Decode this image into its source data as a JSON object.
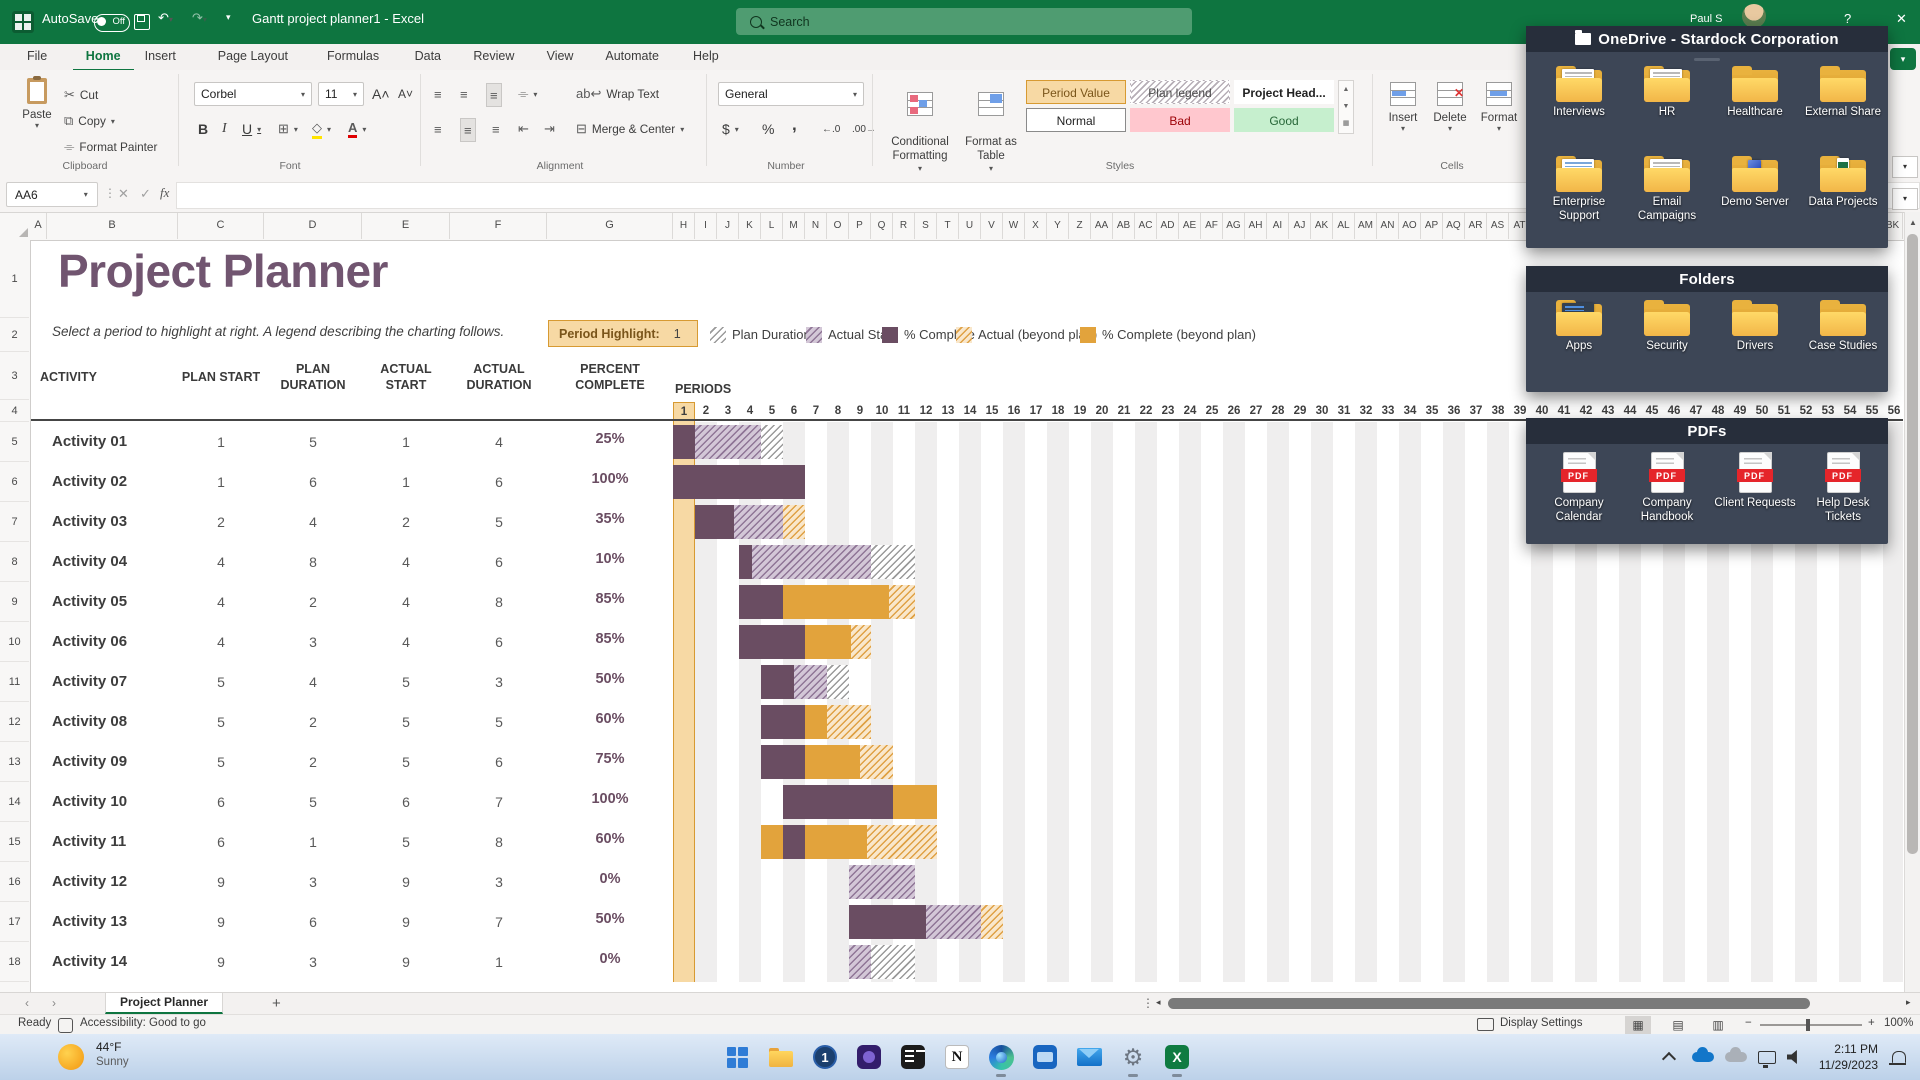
{
  "window": {
    "autosave_label": "AutoSave",
    "autosave_state": "Off",
    "filename": "Gantt project planner1 - Excel",
    "search_placeholder": "Search",
    "user_name": "Paul S",
    "help_label": "?",
    "close_label": "✕"
  },
  "ribbon": {
    "tabs": [
      "File",
      "Home",
      "Insert",
      "Page Layout",
      "Formulas",
      "Data",
      "Review",
      "View",
      "Automate",
      "Help"
    ],
    "active_tab": "Home",
    "clipboard": {
      "label": "Clipboard",
      "paste": "Paste",
      "cut": "Cut",
      "copy": "Copy",
      "format_painter": "Format Painter"
    },
    "font": {
      "label": "Font",
      "name": "Corbel",
      "size": "11",
      "bold": "B",
      "italic": "I",
      "underline": "U"
    },
    "alignment": {
      "label": "Alignment",
      "wrap": "Wrap Text",
      "merge": "Merge & Center"
    },
    "number": {
      "label": "Number",
      "format": "General",
      "symbols": [
        "$",
        "%",
        ","
      ]
    },
    "styles": {
      "label": "Styles",
      "conditional": "Conditional\nFormatting",
      "format_table": "Format as\nTable",
      "gallery": [
        {
          "label": "Period Value",
          "style": "g-period"
        },
        {
          "label": "Plan legend",
          "style": "g-hatch"
        },
        {
          "label": "Project Head...",
          "style": "g-bold"
        },
        {
          "label": "Normal",
          "style": "g-normal"
        },
        {
          "label": "Bad",
          "style": "g-bad"
        },
        {
          "label": "Good",
          "style": "g-good"
        }
      ]
    },
    "cells": {
      "label": "Cells",
      "buttons": [
        "Insert",
        "Delete",
        "Format"
      ]
    }
  },
  "formula_bar": {
    "name_box": "AA6",
    "fx": "fx"
  },
  "sheet": {
    "col_headers_visible": [
      "A",
      "B",
      "C",
      "D",
      "E",
      "F",
      "G",
      "H",
      "I",
      "J",
      "K",
      "L",
      "M",
      "N",
      "O",
      "P",
      "Q",
      "R",
      "S",
      "T",
      "U",
      "V",
      "W",
      "X",
      "Y",
      "Z",
      "AA",
      "AB",
      "AC",
      "AD",
      "AE",
      "AF",
      "AG",
      "AH",
      "AI",
      "AJ",
      "AK",
      "AL",
      "AM",
      "AN",
      "AO",
      "AP",
      "AQ",
      "AR",
      "AS",
      "BK"
    ],
    "row_count": 18,
    "title": "Project Planner",
    "subtitle": "Select a period to highlight at right.  A legend describing the charting follows.",
    "period_highlight_label": "Period Highlight:",
    "period_highlight_value": "1",
    "legend": [
      {
        "label": "Plan Duration",
        "swatch": "seg-hgray"
      },
      {
        "label": "Actual Start",
        "swatch": "seg-hpurple"
      },
      {
        "label": "% Complete",
        "swatch": "seg-purple"
      },
      {
        "label": "Actual (beyond plan)",
        "swatch": "seg-horange"
      },
      {
        "label": "% Complete (beyond plan)",
        "swatch": "seg-orange"
      }
    ],
    "table_headers": [
      "ACTIVITY",
      "PLAN START",
      "PLAN\nDURATION",
      "ACTUAL\nSTART",
      "ACTUAL\nDURATION",
      "PERCENT\nCOMPLETE"
    ],
    "periods_label": "PERIODS",
    "period_count": 56,
    "highlighted_period": 1,
    "activities": [
      {
        "name": "Activity 01",
        "plan_start": 1,
        "plan_duration": 5,
        "actual_start": 1,
        "actual_duration": 4,
        "percent_complete": "25%",
        "pct": 0.25
      },
      {
        "name": "Activity 02",
        "plan_start": 1,
        "plan_duration": 6,
        "actual_start": 1,
        "actual_duration": 6,
        "percent_complete": "100%",
        "pct": 1
      },
      {
        "name": "Activity 03",
        "plan_start": 2,
        "plan_duration": 4,
        "actual_start": 2,
        "actual_duration": 5,
        "percent_complete": "35%",
        "pct": 0.35
      },
      {
        "name": "Activity 04",
        "plan_start": 4,
        "plan_duration": 8,
        "actual_start": 4,
        "actual_duration": 6,
        "percent_complete": "10%",
        "pct": 0.1
      },
      {
        "name": "Activity 05",
        "plan_start": 4,
        "plan_duration": 2,
        "actual_start": 4,
        "actual_duration": 8,
        "percent_complete": "85%",
        "pct": 0.85
      },
      {
        "name": "Activity 06",
        "plan_start": 4,
        "plan_duration": 3,
        "actual_start": 4,
        "actual_duration": 6,
        "percent_complete": "85%",
        "pct": 0.85
      },
      {
        "name": "Activity 07",
        "plan_start": 5,
        "plan_duration": 4,
        "actual_start": 5,
        "actual_duration": 3,
        "percent_complete": "50%",
        "pct": 0.5
      },
      {
        "name": "Activity 08",
        "plan_start": 5,
        "plan_duration": 2,
        "actual_start": 5,
        "actual_duration": 5,
        "percent_complete": "60%",
        "pct": 0.6
      },
      {
        "name": "Activity 09",
        "plan_start": 5,
        "plan_duration": 2,
        "actual_start": 5,
        "actual_duration": 6,
        "percent_complete": "75%",
        "pct": 0.75
      },
      {
        "name": "Activity 10",
        "plan_start": 6,
        "plan_duration": 5,
        "actual_start": 6,
        "actual_duration": 7,
        "percent_complete": "100%",
        "pct": 1
      },
      {
        "name": "Activity 11",
        "plan_start": 6,
        "plan_duration": 1,
        "actual_start": 5,
        "actual_duration": 8,
        "percent_complete": "60%",
        "pct": 0.6
      },
      {
        "name": "Activity 12",
        "plan_start": 9,
        "plan_duration": 3,
        "actual_start": 9,
        "actual_duration": 3,
        "percent_complete": "0%",
        "pct": 0
      },
      {
        "name": "Activity 13",
        "plan_start": 9,
        "plan_duration": 6,
        "actual_start": 9,
        "actual_duration": 7,
        "percent_complete": "50%",
        "pct": 0.5
      },
      {
        "name": "Activity 14",
        "plan_start": 9,
        "plan_duration": 3,
        "actual_start": 9,
        "actual_duration": 1,
        "percent_complete": "0%",
        "pct": 0
      }
    ]
  },
  "overlays": {
    "onedrive": {
      "title": "OneDrive - Stardock Corporation",
      "items": [
        {
          "label": "Interviews",
          "decor": "paper"
        },
        {
          "label": "HR",
          "decor": "paper"
        },
        {
          "label": "Healthcare",
          "decor": "plain"
        },
        {
          "label": "External Share",
          "decor": "plain"
        },
        {
          "label": "Enterprise Support",
          "decor": "paper-blue"
        },
        {
          "label": "Email Campaigns",
          "decor": "paper"
        },
        {
          "label": "Demo Server",
          "decor": "box"
        },
        {
          "label": "Data Projects",
          "decor": "excel"
        }
      ]
    },
    "folders": {
      "title": "Folders",
      "items": [
        {
          "label": "Apps",
          "decor": "apps"
        },
        {
          "label": "Security",
          "decor": "plain"
        },
        {
          "label": "Drivers",
          "decor": "plain"
        },
        {
          "label": "Case Studies",
          "decor": "plain"
        }
      ]
    },
    "pdfs": {
      "title": "PDFs",
      "badge": "PDF",
      "items": [
        {
          "label": "Company Calendar"
        },
        {
          "label": "Company Handbook"
        },
        {
          "label": "Client Requests"
        },
        {
          "label": "Help Desk Tickets"
        }
      ]
    }
  },
  "tab_bar": {
    "active_tab": "Project Planner",
    "add_label": "+"
  },
  "status_bar": {
    "ready": "Ready",
    "accessibility": "Accessibility: Good to go",
    "display_settings": "Display Settings",
    "zoom_level": "100%"
  },
  "taskbar": {
    "weather": {
      "temp": "44°F",
      "condition": "Sunny"
    },
    "icons": [
      {
        "name": "start",
        "running": false
      },
      {
        "name": "file-explorer",
        "running": false
      },
      {
        "name": "onepassword",
        "glyph": "1",
        "running": false
      },
      {
        "name": "clipchamp",
        "running": false
      },
      {
        "name": "font-app",
        "running": false
      },
      {
        "name": "notion",
        "glyph": "N",
        "running": false
      },
      {
        "name": "edge",
        "running": true
      },
      {
        "name": "deskpad",
        "running": false
      },
      {
        "name": "mail",
        "running": false
      },
      {
        "name": "settings",
        "glyph": "⚙",
        "running": true
      },
      {
        "name": "excel",
        "glyph": "X",
        "running": true
      }
    ],
    "tray": {
      "time": "2:11 PM",
      "date": "11/29/2023"
    }
  },
  "colors": {
    "excel_green": "#0e7540",
    "bar_purple": "#6a4d62",
    "bar_orange": "#e2a33c",
    "highlight_tan": "#f7d9a4",
    "highlight_border": "#d79a32",
    "panel_bg": "#3d4656",
    "panel_header": "#272e3b"
  }
}
